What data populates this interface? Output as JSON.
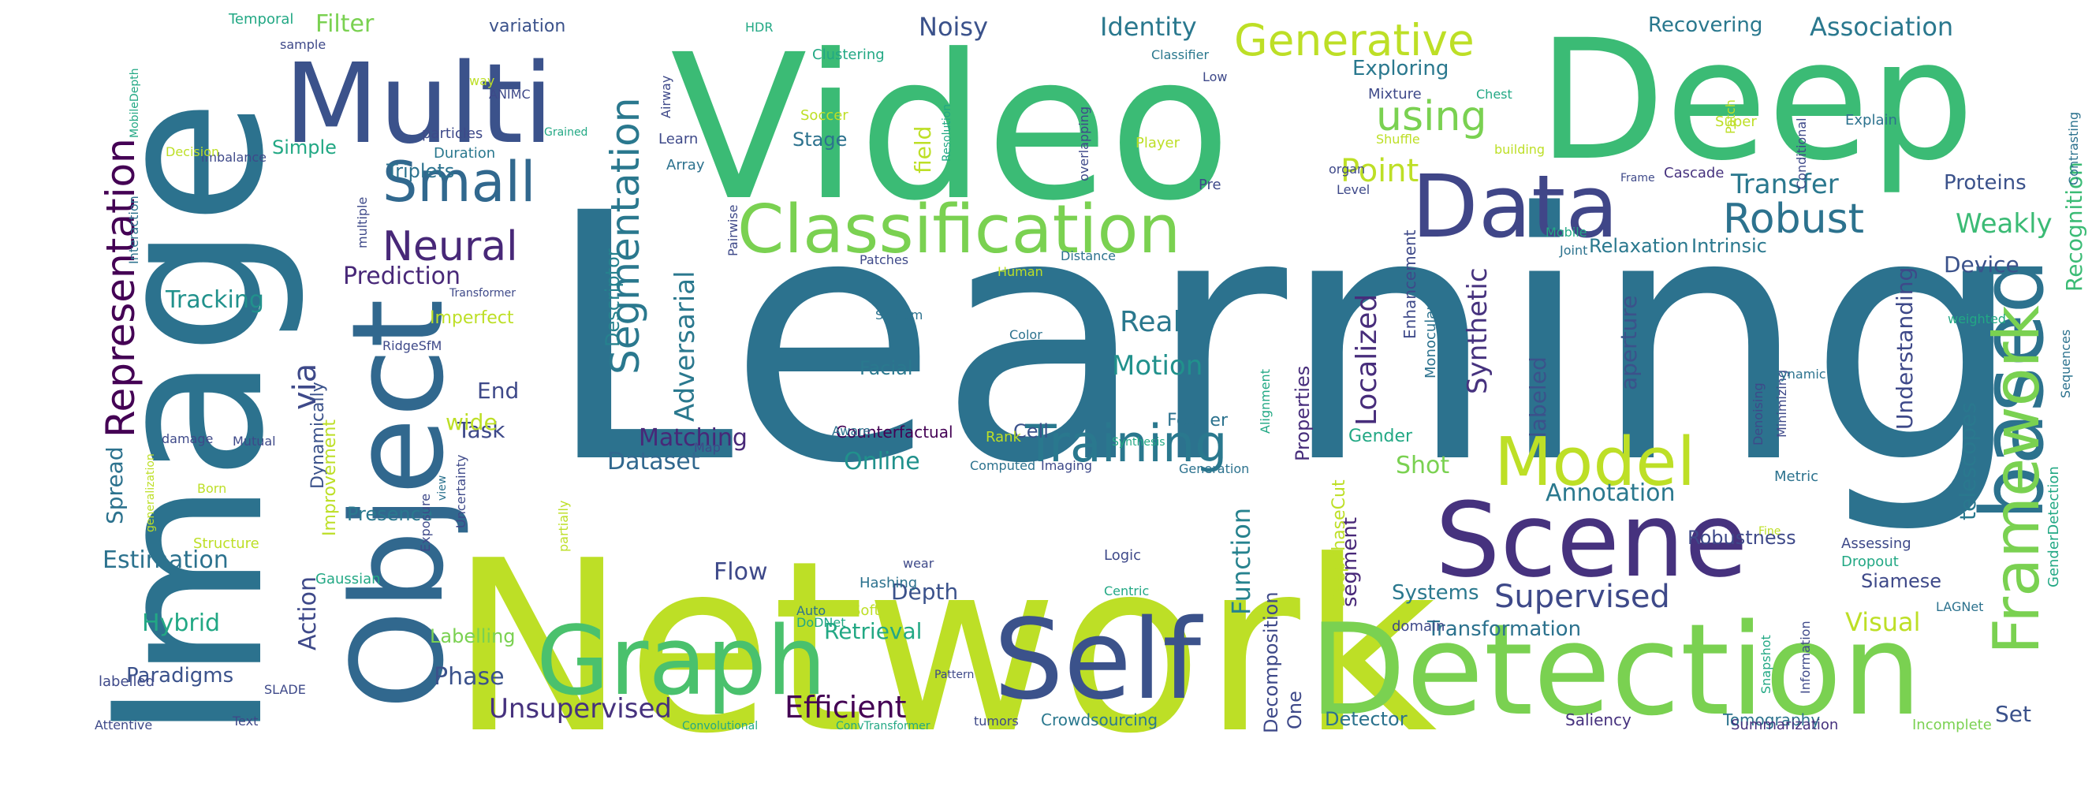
{
  "words": [
    {
      "text": "Learning",
      "color": "#2c728e"
    },
    {
      "text": "Network",
      "color": "#bddf26"
    },
    {
      "text": "Video",
      "color": "#3bbb75"
    },
    {
      "text": "Deep",
      "color": "#3bbb75"
    },
    {
      "text": "Image",
      "color": "#2c728e"
    },
    {
      "text": "Detection",
      "color": "#7ad151"
    },
    {
      "text": "Object",
      "color": "#31688e"
    },
    {
      "text": "Multi",
      "color": "#3b528b"
    },
    {
      "text": "Scene",
      "color": "#46327e"
    },
    {
      "text": "Self",
      "color": "#3b528b"
    },
    {
      "text": "Graph",
      "color": "#4ac16d"
    },
    {
      "text": "Data",
      "color": "#404688"
    },
    {
      "text": "based",
      "color": "#2c728e"
    },
    {
      "text": "Classification",
      "color": "#7ad151"
    },
    {
      "text": "Framework",
      "color": "#7ad151"
    },
    {
      "text": "Model",
      "color": "#bddf26"
    },
    {
      "text": "Training",
      "color": "#2a788e"
    },
    {
      "text": "Generative",
      "color": "#bddf26"
    },
    {
      "text": "Small",
      "color": "#31688e"
    },
    {
      "text": "Representation",
      "color": "#440154"
    },
    {
      "text": "Segmentation",
      "color": "#2a788e"
    },
    {
      "text": "Robust",
      "color": "#2c728e"
    },
    {
      "text": "using",
      "color": "#7ad151"
    },
    {
      "text": "Neural",
      "color": "#482878"
    },
    {
      "text": "Recognition",
      "color": "#3bbb75"
    },
    {
      "text": "Supervised",
      "color": "#3e4989"
    },
    {
      "text": "Efficient",
      "color": "#440154"
    },
    {
      "text": "Unsupervised",
      "color": "#46327e"
    },
    {
      "text": "Point",
      "color": "#bddf26"
    },
    {
      "text": "Synthetic",
      "color": "#46327e"
    },
    {
      "text": "Localized",
      "color": "#472d7b"
    },
    {
      "text": "via",
      "color": "#3e4989"
    },
    {
      "text": "Adversarial",
      "color": "#2a788e"
    },
    {
      "text": "Function",
      "color": "#26828e"
    },
    {
      "text": "Filter",
      "color": "#7ad151"
    },
    {
      "text": "Identity",
      "color": "#2a788e"
    },
    {
      "text": "Association",
      "color": "#2a788e"
    },
    {
      "text": "Noisy",
      "color": "#3b528b"
    },
    {
      "text": "Weakly",
      "color": "#3bbb75"
    },
    {
      "text": "Transfer",
      "color": "#2a788e"
    },
    {
      "text": "Real",
      "color": "#2a788e"
    },
    {
      "text": "Motion",
      "color": "#21918c"
    },
    {
      "text": "Matching",
      "color": "#482878"
    },
    {
      "text": "Dataset",
      "color": "#31688e"
    },
    {
      "text": "Online",
      "color": "#21918c"
    },
    {
      "text": "Tracking",
      "color": "#21918c"
    },
    {
      "text": "Prediction",
      "color": "#482878"
    },
    {
      "text": "Estimation",
      "color": "#2c728e"
    },
    {
      "text": "Hybrid",
      "color": "#22a884"
    },
    {
      "text": "Spread",
      "color": "#2c728e"
    },
    {
      "text": "Action",
      "color": "#3e4989"
    },
    {
      "text": "Phase",
      "color": "#3b528b"
    },
    {
      "text": "Paradigms",
      "color": "#3b528b"
    },
    {
      "text": "Flow",
      "color": "#3e4989"
    },
    {
      "text": "Retrieval",
      "color": "#22a884"
    },
    {
      "text": "Depth",
      "color": "#3b528b"
    },
    {
      "text": "Visual",
      "color": "#bddf26"
    },
    {
      "text": "Systems",
      "color": "#2a788e"
    },
    {
      "text": "Transformation",
      "color": "#2c728e"
    },
    {
      "text": "Annotation",
      "color": "#2a788e"
    },
    {
      "text": "Shot",
      "color": "#7ad151"
    },
    {
      "text": "Robustness",
      "color": "#3e4989"
    },
    {
      "text": "Understanding",
      "color": "#3e4989"
    },
    {
      "text": "telescopes",
      "color": "#2a788e"
    },
    {
      "text": "aperture",
      "color": "#3b528b"
    },
    {
      "text": "labeled",
      "color": "#3b528b"
    },
    {
      "text": "Device",
      "color": "#3b528b"
    },
    {
      "text": "Proteins",
      "color": "#3b528b"
    },
    {
      "text": "Set",
      "color": "#3b528b"
    },
    {
      "text": "Siamese",
      "color": "#3e4989"
    },
    {
      "text": "Descriptor",
      "color": "#26828e"
    },
    {
      "text": "Task",
      "color": "#3e4989"
    },
    {
      "text": "End",
      "color": "#3e4989"
    },
    {
      "text": "wide",
      "color": "#bddf26"
    },
    {
      "text": "segment",
      "color": "#482878"
    },
    {
      "text": "Decomposition",
      "color": "#3e4989"
    },
    {
      "text": "One",
      "color": "#3e4989"
    },
    {
      "text": "Detector",
      "color": "#2c728e"
    },
    {
      "text": "DeepPhaseCut",
      "color": "#bddf26"
    },
    {
      "text": "Properties",
      "color": "#472d7b"
    },
    {
      "text": "Enhancement",
      "color": "#3e4989"
    },
    {
      "text": "Relaxation",
      "color": "#2a788e"
    },
    {
      "text": "Intrinsic",
      "color": "#2a788e"
    },
    {
      "text": "Fourier",
      "color": "#2c728e"
    },
    {
      "text": "Cell",
      "color": "#3b528b"
    },
    {
      "text": "Facial",
      "color": "#2a788e"
    },
    {
      "text": "Stage",
      "color": "#2c728e"
    },
    {
      "text": "field",
      "color": "#bddf26"
    },
    {
      "text": "Exploring",
      "color": "#2a788e"
    },
    {
      "text": "Recovering",
      "color": "#2a788e"
    },
    {
      "text": "Presence",
      "color": "#2a788e"
    },
    {
      "text": "Simple",
      "color": "#22a884"
    },
    {
      "text": "Triplets",
      "color": "#2c728e"
    },
    {
      "text": "Imperfect",
      "color": "#bddf26"
    },
    {
      "text": "Dynamically",
      "color": "#3b528b"
    },
    {
      "text": "Improvement",
      "color": "#bddf26"
    },
    {
      "text": "Labelling",
      "color": "#7ad151"
    },
    {
      "text": "Gender",
      "color": "#22a884"
    },
    {
      "text": "variation",
      "color": "#3b528b"
    },
    {
      "text": "Counterfactual",
      "color": "#440154"
    },
    {
      "text": "Saliency",
      "color": "#46327e"
    },
    {
      "text": "Tomography",
      "color": "#2c728e"
    },
    {
      "text": "Summarization",
      "color": "#46327e"
    },
    {
      "text": "Incomplete",
      "color": "#7ad151"
    },
    {
      "text": "Crowdsourcing",
      "color": "#2a788e"
    },
    {
      "text": "Temporal",
      "color": "#22a884"
    },
    {
      "text": "sample",
      "color": "#3e4989"
    },
    {
      "text": "way",
      "color": "#bddf26"
    },
    {
      "text": "ANIMC",
      "color": "#3e4989"
    },
    {
      "text": "particles",
      "color": "#3e4989"
    },
    {
      "text": "Duration",
      "color": "#2a788e"
    },
    {
      "text": "Grained",
      "color": "#22a884"
    },
    {
      "text": "Learn",
      "color": "#3e4989"
    },
    {
      "text": "Array",
      "color": "#2c728e"
    },
    {
      "text": "Airway",
      "color": "#3e4989"
    },
    {
      "text": "HDR",
      "color": "#22a884"
    },
    {
      "text": "Clustering",
      "color": "#22a884"
    },
    {
      "text": "Soccer",
      "color": "#bddf26"
    },
    {
      "text": "Resolution",
      "color": "#22a884"
    },
    {
      "text": "overlapping",
      "color": "#3e4989"
    },
    {
      "text": "Classifier",
      "color": "#2a788e"
    },
    {
      "text": "Low",
      "color": "#3e4989"
    },
    {
      "text": "Mixture",
      "color": "#3e4989"
    },
    {
      "text": "Chest",
      "color": "#22a884"
    },
    {
      "text": "Patch",
      "color": "#bddf26"
    },
    {
      "text": "Contrasting",
      "color": "#2c728e"
    },
    {
      "text": "Shuffle",
      "color": "#bddf26"
    },
    {
      "text": "building",
      "color": "#bddf26"
    },
    {
      "text": "Super",
      "color": "#bddf26"
    },
    {
      "text": "Conditional",
      "color": "#3e4989"
    },
    {
      "text": "Explain",
      "color": "#2c728e"
    },
    {
      "text": "Player",
      "color": "#bddf26"
    },
    {
      "text": "organ",
      "color": "#3e4989"
    },
    {
      "text": "Frame",
      "color": "#3e4989"
    },
    {
      "text": "Cascade",
      "color": "#46327e"
    },
    {
      "text": "Pre",
      "color": "#3e4989"
    },
    {
      "text": "Level",
      "color": "#3e4989"
    },
    {
      "text": "Mobile",
      "color": "#22a884"
    },
    {
      "text": "Joint",
      "color": "#2c728e"
    },
    {
      "text": "Patches",
      "color": "#3e4989"
    },
    {
      "text": "Distance",
      "color": "#2c728e"
    },
    {
      "text": "Human",
      "color": "#bddf26"
    },
    {
      "text": "Color",
      "color": "#2c728e"
    },
    {
      "text": "SalSum",
      "color": "#2c728e"
    },
    {
      "text": "Pairwise",
      "color": "#3e4989"
    },
    {
      "text": "Transformer",
      "color": "#3e4989"
    },
    {
      "text": "RidgeSfM",
      "color": "#3e4989"
    },
    {
      "text": "multiple",
      "color": "#3e4989"
    },
    {
      "text": "imbalance",
      "color": "#3e4989"
    },
    {
      "text": "Decision",
      "color": "#bddf26"
    },
    {
      "text": "Interaction",
      "color": "#2c728e"
    },
    {
      "text": "MobileDepth",
      "color": "#22a884"
    },
    {
      "text": "Monocular",
      "color": "#2c728e"
    },
    {
      "text": "Alignment",
      "color": "#22a884"
    },
    {
      "text": "Synthesis",
      "color": "#22a884"
    },
    {
      "text": "Denoising",
      "color": "#3e4989"
    },
    {
      "text": "Minimizing",
      "color": "#3e4989"
    },
    {
      "text": "Dynamic",
      "color": "#2c728e"
    },
    {
      "text": "weighted",
      "color": "#22a884"
    },
    {
      "text": "Sequences",
      "color": "#2c728e"
    },
    {
      "text": "Rank",
      "color": "#bddf26"
    },
    {
      "text": "Aware",
      "color": "#2c728e"
    },
    {
      "text": "Map",
      "color": "#3e4989"
    },
    {
      "text": "Computed",
      "color": "#2c728e"
    },
    {
      "text": "Imaging",
      "color": "#3e4989"
    },
    {
      "text": "Generation",
      "color": "#2c728e"
    },
    {
      "text": "Metric",
      "color": "#2c728e"
    },
    {
      "text": "damage",
      "color": "#3e4989"
    },
    {
      "text": "Mutual",
      "color": "#3e4989"
    },
    {
      "text": "view",
      "color": "#2c728e"
    },
    {
      "text": "Uncertainty",
      "color": "#3e4989"
    },
    {
      "text": "Exposure",
      "color": "#3e4989"
    },
    {
      "text": "generalization",
      "color": "#bddf26"
    },
    {
      "text": "Born",
      "color": "#bddf26"
    },
    {
      "text": "Structure",
      "color": "#bddf26"
    },
    {
      "text": "Gaussian",
      "color": "#22a884"
    },
    {
      "text": "partially",
      "color": "#bddf26"
    },
    {
      "text": "wear",
      "color": "#3e4989"
    },
    {
      "text": "Hashing",
      "color": "#2c728e"
    },
    {
      "text": "Soft",
      "color": "#bddf26"
    },
    {
      "text": "Logic",
      "color": "#3e4989"
    },
    {
      "text": "Auto",
      "color": "#2c728e"
    },
    {
      "text": "DoDNet",
      "color": "#22a884"
    },
    {
      "text": "Centric",
      "color": "#22a884"
    },
    {
      "text": "domain",
      "color": "#3e4989"
    },
    {
      "text": "Fine",
      "color": "#bddf26"
    },
    {
      "text": "Assessing",
      "color": "#3e4989"
    },
    {
      "text": "Dropout",
      "color": "#22a884"
    },
    {
      "text": "LAGNet",
      "color": "#2c728e"
    },
    {
      "text": "GenderDetection",
      "color": "#22a884"
    },
    {
      "text": "Snapshot",
      "color": "#22a884"
    },
    {
      "text": "Information",
      "color": "#3e4989"
    },
    {
      "text": "labelled",
      "color": "#3e4989"
    },
    {
      "text": "SLADE",
      "color": "#3e4989"
    },
    {
      "text": "Pattern",
      "color": "#3e4989"
    },
    {
      "text": "Attentive",
      "color": "#3e4989"
    },
    {
      "text": "Text",
      "color": "#3e4989"
    },
    {
      "text": "Convolutional",
      "color": "#22a884"
    },
    {
      "text": "ConvTransformer",
      "color": "#22a884"
    },
    {
      "text": "tumors",
      "color": "#3e4989"
    }
  ]
}
